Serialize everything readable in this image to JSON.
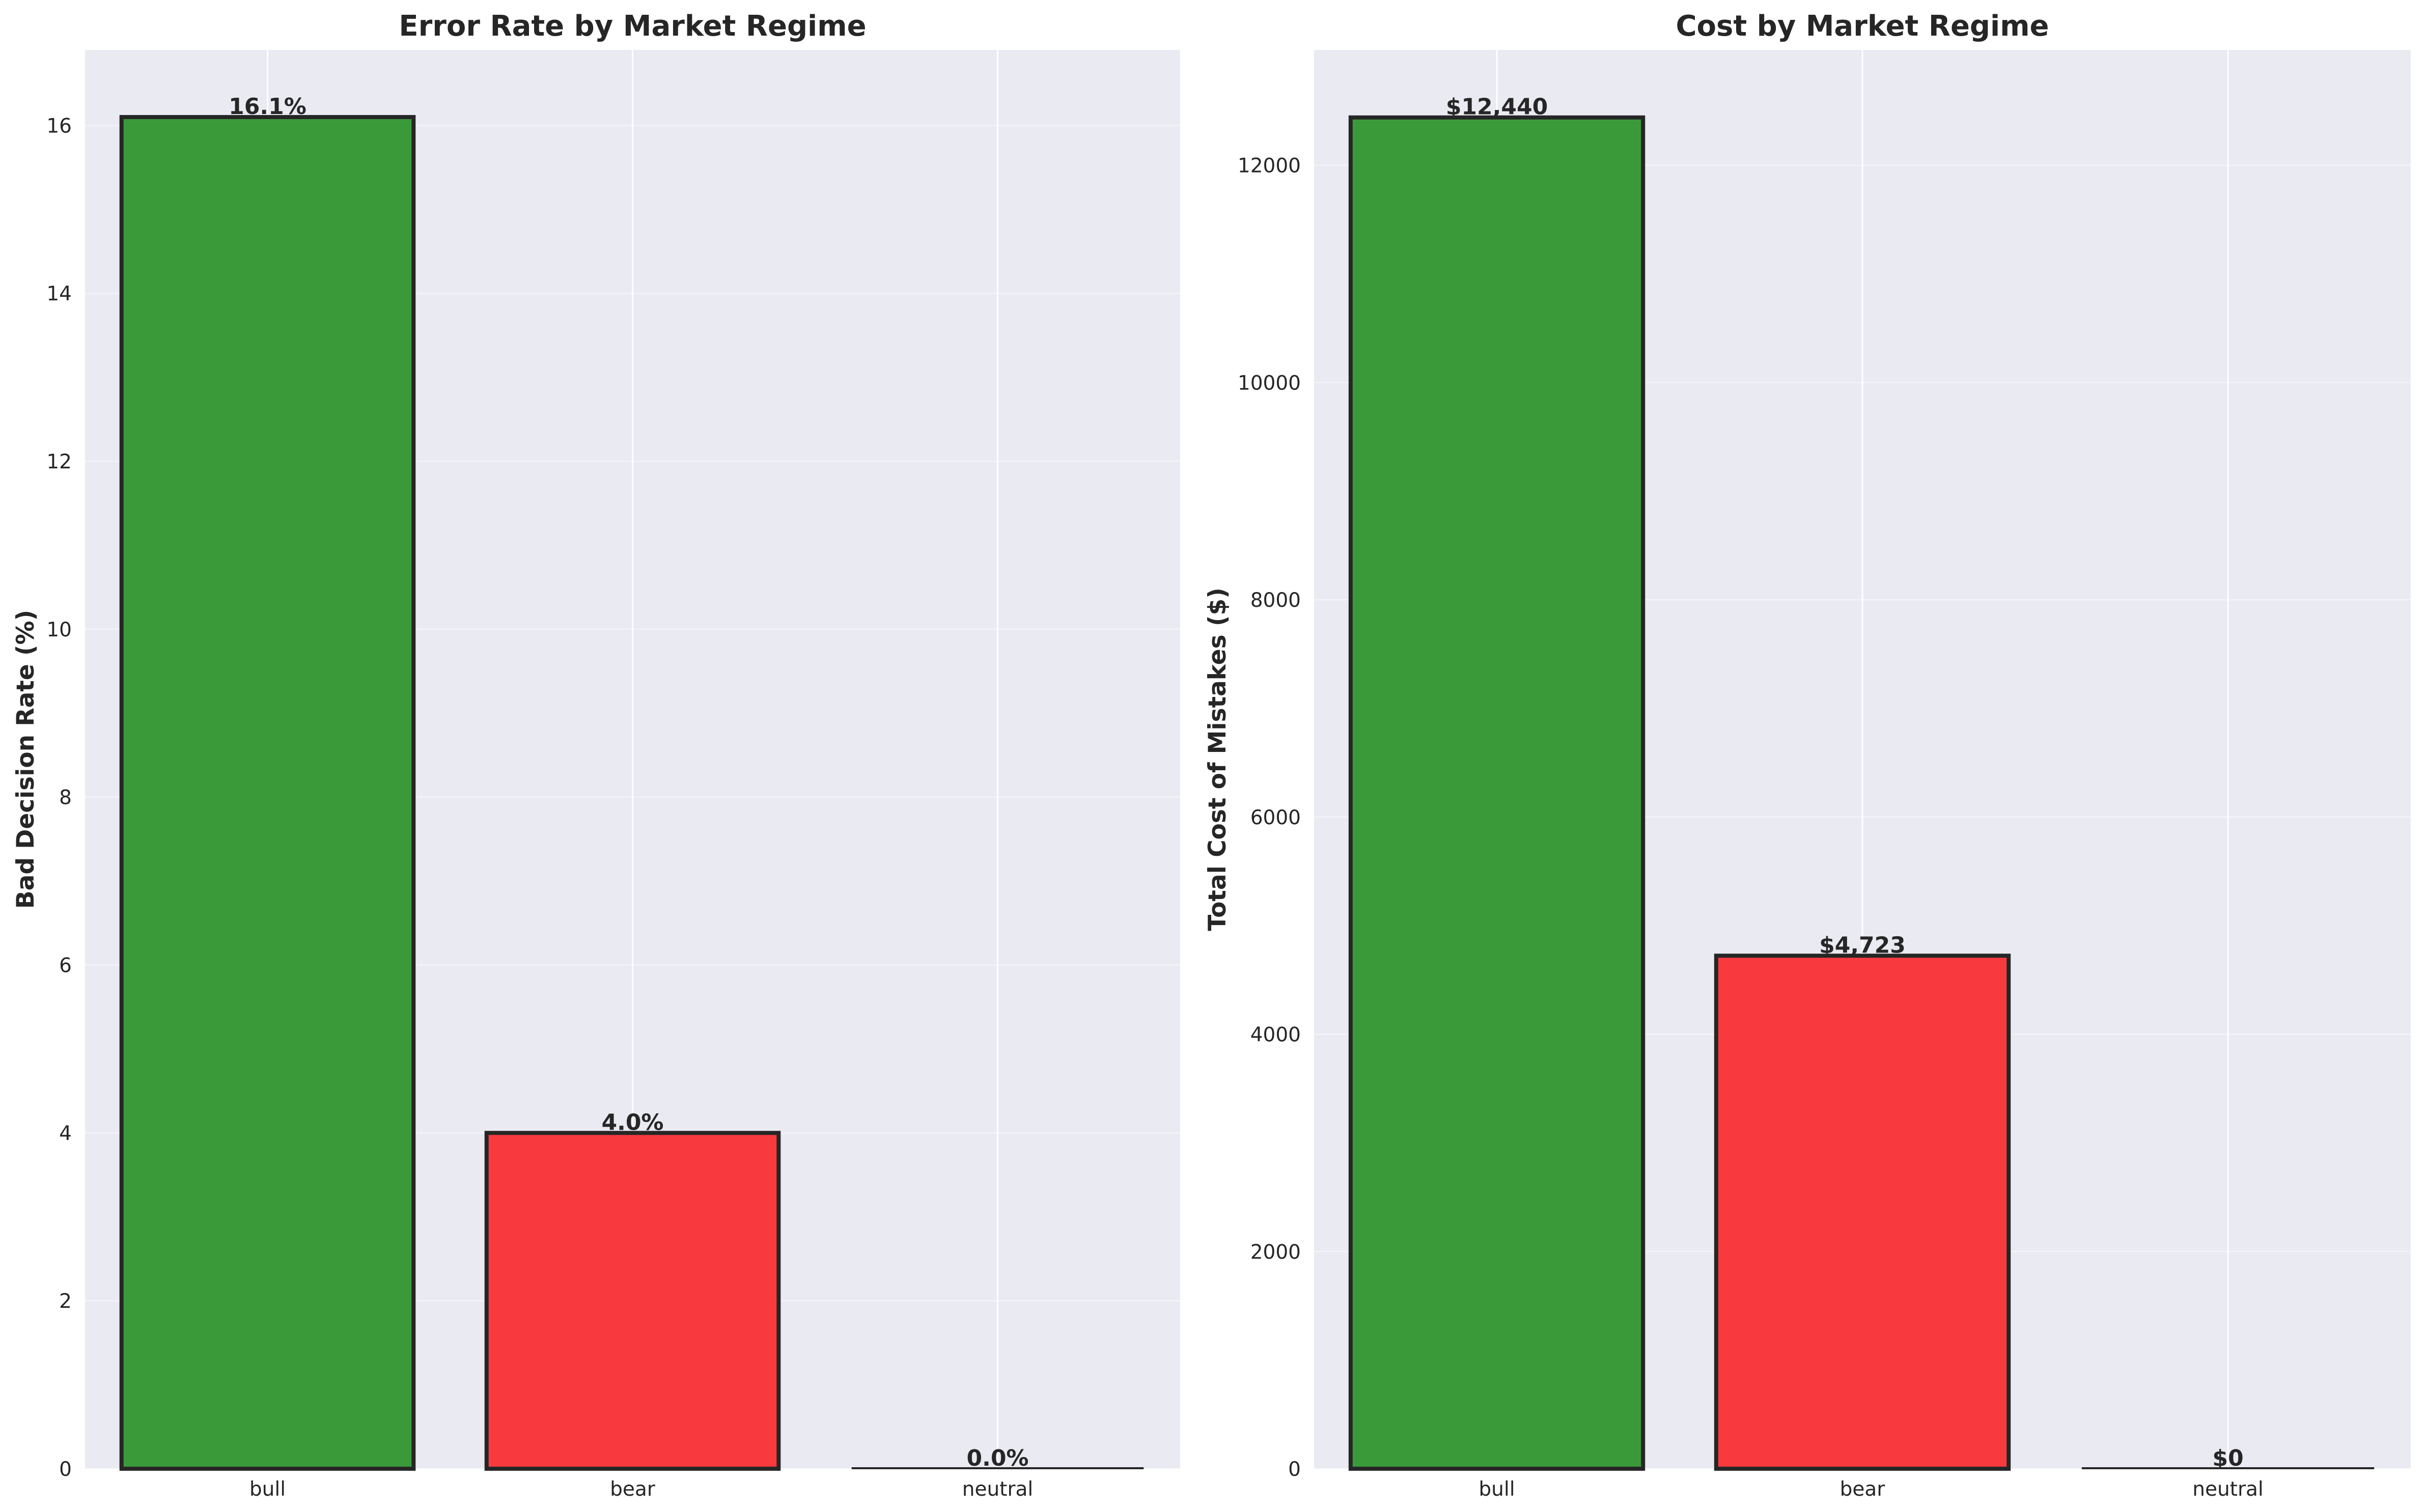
{
  "chart_data": [
    {
      "type": "bar",
      "title": "Error Rate by Market Regime",
      "xlabel": "",
      "ylabel": "Bad Decision Rate (%)",
      "categories": [
        "bull",
        "bear",
        "neutral"
      ],
      "values": [
        16.1,
        4.0,
        0.0
      ],
      "data_labels": [
        "16.1%",
        "4.0%",
        "0.0%"
      ],
      "bar_colors": [
        "#3a9a3a",
        "#f83a3f",
        "#f83a3f"
      ],
      "ylim": [
        0,
        16.9
      ],
      "yticks": [
        0,
        2,
        4,
        6,
        8,
        10,
        12,
        14,
        16
      ],
      "ytick_labels": [
        "0",
        "2",
        "4",
        "6",
        "8",
        "10",
        "12",
        "14",
        "16"
      ],
      "grid": true,
      "legend": false
    },
    {
      "type": "bar",
      "title": "Cost by Market Regime",
      "xlabel": "",
      "ylabel": "Total Cost of Mistakes ($)",
      "categories": [
        "bull",
        "bear",
        "neutral"
      ],
      "values": [
        12440,
        4723,
        0
      ],
      "data_labels": [
        "$12,440",
        "$4,723",
        "$0"
      ],
      "bar_colors": [
        "#3a9a3a",
        "#f83a3f",
        "#f83a3f"
      ],
      "ylim": [
        0,
        13062
      ],
      "yticks": [
        0,
        2000,
        4000,
        6000,
        8000,
        10000,
        12000
      ],
      "ytick_labels": [
        "0",
        "2000",
        "4000",
        "6000",
        "8000",
        "10000",
        "12000"
      ],
      "grid": true,
      "legend": false
    }
  ]
}
